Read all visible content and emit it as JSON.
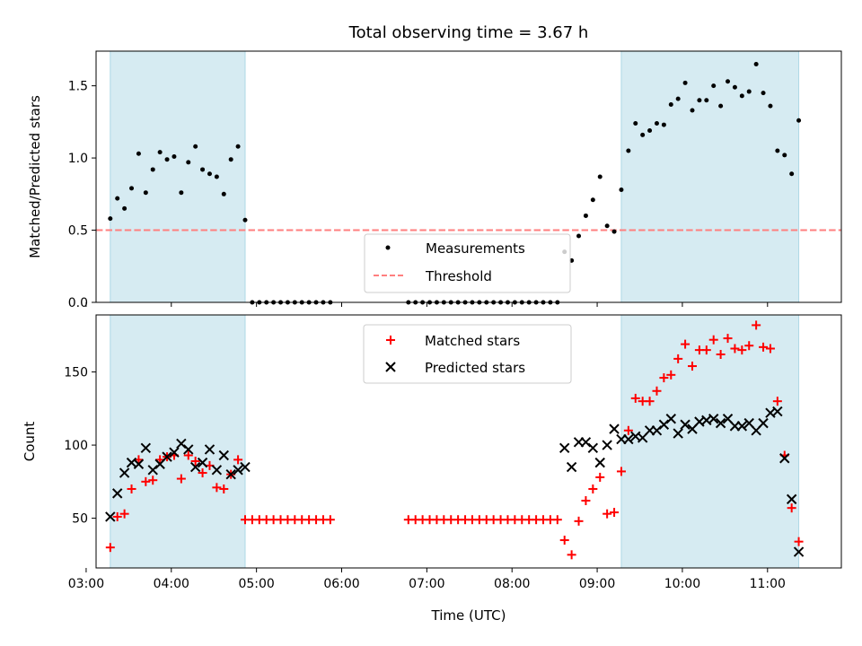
{
  "colors": {
    "shade": "#add8e6",
    "measurement": "#000000",
    "threshold": "#ff7f7f",
    "matched": "#ff0000",
    "predicted": "#000000"
  },
  "chart_data": [
    {
      "type": "scatter",
      "title": "Total observing time = 3.67 h",
      "xlabel": "",
      "ylabel": "Matched/Predicted stars",
      "xlim": [
        "03:07",
        "11:52"
      ],
      "ylim": [
        0,
        1.74
      ],
      "x_ticks": [],
      "y_ticks": [
        0.0,
        0.5,
        1.0,
        1.5
      ],
      "y_tick_labels": [
        "0.0",
        "0.5",
        "1.0",
        "1.5"
      ],
      "shaded_intervals": [
        [
          "03:17",
          "04:52"
        ],
        [
          "09:17",
          "11:22"
        ]
      ],
      "legend": {
        "loc": "lower center",
        "entries": [
          "Measurements",
          "Threshold"
        ]
      },
      "threshold": {
        "name": "Threshold",
        "y": 0.5,
        "style": "dashed"
      },
      "series": [
        {
          "name": "Measurements",
          "marker": "dot",
          "points": [
            [
              "03:17",
              0.58
            ],
            [
              "03:22",
              0.72
            ],
            [
              "03:27",
              0.65
            ],
            [
              "03:32",
              0.79
            ],
            [
              "03:37",
              1.03
            ],
            [
              "03:42",
              0.76
            ],
            [
              "03:47",
              0.92
            ],
            [
              "03:52",
              1.04
            ],
            [
              "03:57",
              0.99
            ],
            [
              "04:02",
              1.01
            ],
            [
              "04:07",
              0.76
            ],
            [
              "04:12",
              0.97
            ],
            [
              "04:17",
              1.08
            ],
            [
              "04:22",
              0.92
            ],
            [
              "04:27",
              0.89
            ],
            [
              "04:32",
              0.87
            ],
            [
              "04:37",
              0.75
            ],
            [
              "04:42",
              0.99
            ],
            [
              "04:47",
              1.08
            ],
            [
              "04:52",
              0.57
            ],
            [
              "04:57",
              0.0
            ],
            [
              "05:02",
              0.0
            ],
            [
              "05:07",
              0.0
            ],
            [
              "05:12",
              0.0
            ],
            [
              "05:17",
              0.0
            ],
            [
              "05:22",
              0.0
            ],
            [
              "05:27",
              0.0
            ],
            [
              "05:32",
              0.0
            ],
            [
              "05:37",
              0.0
            ],
            [
              "05:42",
              0.0
            ],
            [
              "05:47",
              0.0
            ],
            [
              "05:52",
              0.0
            ],
            [
              "06:47",
              0.0
            ],
            [
              "06:52",
              0.0
            ],
            [
              "06:57",
              0.0
            ],
            [
              "07:02",
              0.0
            ],
            [
              "07:07",
              0.0
            ],
            [
              "07:12",
              0.0
            ],
            [
              "07:17",
              0.0
            ],
            [
              "07:22",
              0.0
            ],
            [
              "07:27",
              0.0
            ],
            [
              "07:32",
              0.0
            ],
            [
              "07:37",
              0.0
            ],
            [
              "07:42",
              0.0
            ],
            [
              "07:47",
              0.0
            ],
            [
              "07:52",
              0.0
            ],
            [
              "07:57",
              0.0
            ],
            [
              "08:02",
              0.0
            ],
            [
              "08:07",
              0.0
            ],
            [
              "08:12",
              0.0
            ],
            [
              "08:17",
              0.0
            ],
            [
              "08:22",
              0.0
            ],
            [
              "08:27",
              0.0
            ],
            [
              "08:32",
              0.0
            ],
            [
              "08:37",
              0.35
            ],
            [
              "08:42",
              0.29
            ],
            [
              "08:47",
              0.46
            ],
            [
              "08:52",
              0.6
            ],
            [
              "08:57",
              0.71
            ],
            [
              "09:02",
              0.87
            ],
            [
              "09:07",
              0.53
            ],
            [
              "09:12",
              0.49
            ],
            [
              "09:17",
              0.78
            ],
            [
              "09:22",
              1.05
            ],
            [
              "09:27",
              1.24
            ],
            [
              "09:32",
              1.16
            ],
            [
              "09:37",
              1.19
            ],
            [
              "09:42",
              1.24
            ],
            [
              "09:47",
              1.23
            ],
            [
              "09:52",
              1.37
            ],
            [
              "09:57",
              1.41
            ],
            [
              "10:02",
              1.52
            ],
            [
              "10:07",
              1.33
            ],
            [
              "10:12",
              1.4
            ],
            [
              "10:17",
              1.4
            ],
            [
              "10:22",
              1.5
            ],
            [
              "10:27",
              1.36
            ],
            [
              "10:32",
              1.53
            ],
            [
              "10:37",
              1.49
            ],
            [
              "10:42",
              1.43
            ],
            [
              "10:47",
              1.46
            ],
            [
              "10:52",
              1.65
            ],
            [
              "10:57",
              1.45
            ],
            [
              "11:02",
              1.36
            ],
            [
              "11:07",
              1.05
            ],
            [
              "11:12",
              1.02
            ],
            [
              "11:17",
              0.89
            ],
            [
              "11:22",
              1.26
            ]
          ]
        }
      ]
    },
    {
      "type": "scatter",
      "title": "",
      "xlabel": "Time (UTC)",
      "ylabel": "Count",
      "xlim": [
        "03:07",
        "11:52"
      ],
      "ylim": [
        16,
        189
      ],
      "x_ticks": [
        "03:00",
        "04:00",
        "05:00",
        "06:00",
        "07:00",
        "08:00",
        "09:00",
        "10:00",
        "11:00"
      ],
      "y_ticks": [
        50,
        100,
        150
      ],
      "shaded_intervals": [
        [
          "03:17",
          "04:52"
        ],
        [
          "09:17",
          "11:22"
        ]
      ],
      "legend": {
        "loc": "upper center",
        "entries": [
          "Matched stars",
          "Predicted stars"
        ]
      },
      "series": [
        {
          "name": "Matched stars",
          "marker": "plus",
          "points": [
            [
              "03:17",
              30
            ],
            [
              "03:22",
              51
            ],
            [
              "03:27",
              53
            ],
            [
              "03:32",
              70
            ],
            [
              "03:37",
              90
            ],
            [
              "03:42",
              75
            ],
            [
              "03:47",
              76
            ],
            [
              "03:52",
              90
            ],
            [
              "03:57",
              92
            ],
            [
              "04:02",
              93
            ],
            [
              "04:07",
              77
            ],
            [
              "04:12",
              93
            ],
            [
              "04:17",
              89
            ],
            [
              "04:22",
              81
            ],
            [
              "04:27",
              86
            ],
            [
              "04:32",
              71
            ],
            [
              "04:37",
              70
            ],
            [
              "04:42",
              80
            ],
            [
              "04:47",
              90
            ],
            [
              "04:52",
              49
            ],
            [
              "04:57",
              49
            ],
            [
              "05:02",
              49
            ],
            [
              "05:07",
              49
            ],
            [
              "05:12",
              49
            ],
            [
              "05:17",
              49
            ],
            [
              "05:22",
              49
            ],
            [
              "05:27",
              49
            ],
            [
              "05:32",
              49
            ],
            [
              "05:37",
              49
            ],
            [
              "05:42",
              49
            ],
            [
              "05:47",
              49
            ],
            [
              "05:52",
              49
            ],
            [
              "06:47",
              49
            ],
            [
              "06:52",
              49
            ],
            [
              "06:57",
              49
            ],
            [
              "07:02",
              49
            ],
            [
              "07:07",
              49
            ],
            [
              "07:12",
              49
            ],
            [
              "07:17",
              49
            ],
            [
              "07:22",
              49
            ],
            [
              "07:27",
              49
            ],
            [
              "07:32",
              49
            ],
            [
              "07:37",
              49
            ],
            [
              "07:42",
              49
            ],
            [
              "07:47",
              49
            ],
            [
              "07:52",
              49
            ],
            [
              "07:57",
              49
            ],
            [
              "08:02",
              49
            ],
            [
              "08:07",
              49
            ],
            [
              "08:12",
              49
            ],
            [
              "08:17",
              49
            ],
            [
              "08:22",
              49
            ],
            [
              "08:27",
              49
            ],
            [
              "08:32",
              49
            ],
            [
              "08:37",
              35
            ],
            [
              "08:42",
              25
            ],
            [
              "08:47",
              48
            ],
            [
              "08:52",
              62
            ],
            [
              "08:57",
              70
            ],
            [
              "09:02",
              78
            ],
            [
              "09:07",
              53
            ],
            [
              "09:12",
              54
            ],
            [
              "09:17",
              82
            ],
            [
              "09:22",
              110
            ],
            [
              "09:27",
              132
            ],
            [
              "09:32",
              130
            ],
            [
              "09:37",
              130
            ],
            [
              "09:42",
              137
            ],
            [
              "09:47",
              146
            ],
            [
              "09:52",
              148
            ],
            [
              "09:57",
              159
            ],
            [
              "10:02",
              169
            ],
            [
              "10:07",
              154
            ],
            [
              "10:12",
              165
            ],
            [
              "10:17",
              165
            ],
            [
              "10:22",
              172
            ],
            [
              "10:27",
              162
            ],
            [
              "10:32",
              173
            ],
            [
              "10:37",
              166
            ],
            [
              "10:42",
              165
            ],
            [
              "10:47",
              168
            ],
            [
              "10:52",
              182
            ],
            [
              "10:57",
              167
            ],
            [
              "11:02",
              166
            ],
            [
              "11:07",
              130
            ],
            [
              "11:12",
              93
            ],
            [
              "11:17",
              57
            ],
            [
              "11:22",
              34
            ]
          ]
        },
        {
          "name": "Predicted stars",
          "marker": "x",
          "points": [
            [
              "03:17",
              51
            ],
            [
              "03:22",
              67
            ],
            [
              "03:27",
              81
            ],
            [
              "03:32",
              88
            ],
            [
              "03:37",
              87
            ],
            [
              "03:42",
              98
            ],
            [
              "03:47",
              83
            ],
            [
              "03:52",
              87
            ],
            [
              "03:57",
              92
            ],
            [
              "04:02",
              95
            ],
            [
              "04:07",
              101
            ],
            [
              "04:12",
              97
            ],
            [
              "04:17",
              85
            ],
            [
              "04:22",
              88
            ],
            [
              "04:27",
              97
            ],
            [
              "04:32",
              83
            ],
            [
              "04:37",
              93
            ],
            [
              "04:42",
              80
            ],
            [
              "04:47",
              83
            ],
            [
              "04:52",
              85
            ],
            [
              "08:37",
              98
            ],
            [
              "08:42",
              85
            ],
            [
              "08:47",
              102
            ],
            [
              "08:52",
              102
            ],
            [
              "08:57",
              98
            ],
            [
              "09:02",
              88
            ],
            [
              "09:07",
              100
            ],
            [
              "09:12",
              111
            ],
            [
              "09:17",
              104
            ],
            [
              "09:22",
              104
            ],
            [
              "09:27",
              106
            ],
            [
              "09:32",
              105
            ],
            [
              "09:37",
              110
            ],
            [
              "09:42",
              110
            ],
            [
              "09:47",
              114
            ],
            [
              "09:52",
              118
            ],
            [
              "09:57",
              108
            ],
            [
              "10:02",
              114
            ],
            [
              "10:07",
              111
            ],
            [
              "10:12",
              116
            ],
            [
              "10:17",
              117
            ],
            [
              "10:22",
              118
            ],
            [
              "10:27",
              115
            ],
            [
              "10:32",
              118
            ],
            [
              "10:37",
              113
            ],
            [
              "10:42",
              113
            ],
            [
              "10:47",
              115
            ],
            [
              "10:52",
              110
            ],
            [
              "10:57",
              115
            ],
            [
              "11:02",
              122
            ],
            [
              "11:07",
              123
            ],
            [
              "11:12",
              91
            ],
            [
              "11:17",
              63
            ],
            [
              "11:22",
              27
            ]
          ]
        }
      ]
    }
  ]
}
